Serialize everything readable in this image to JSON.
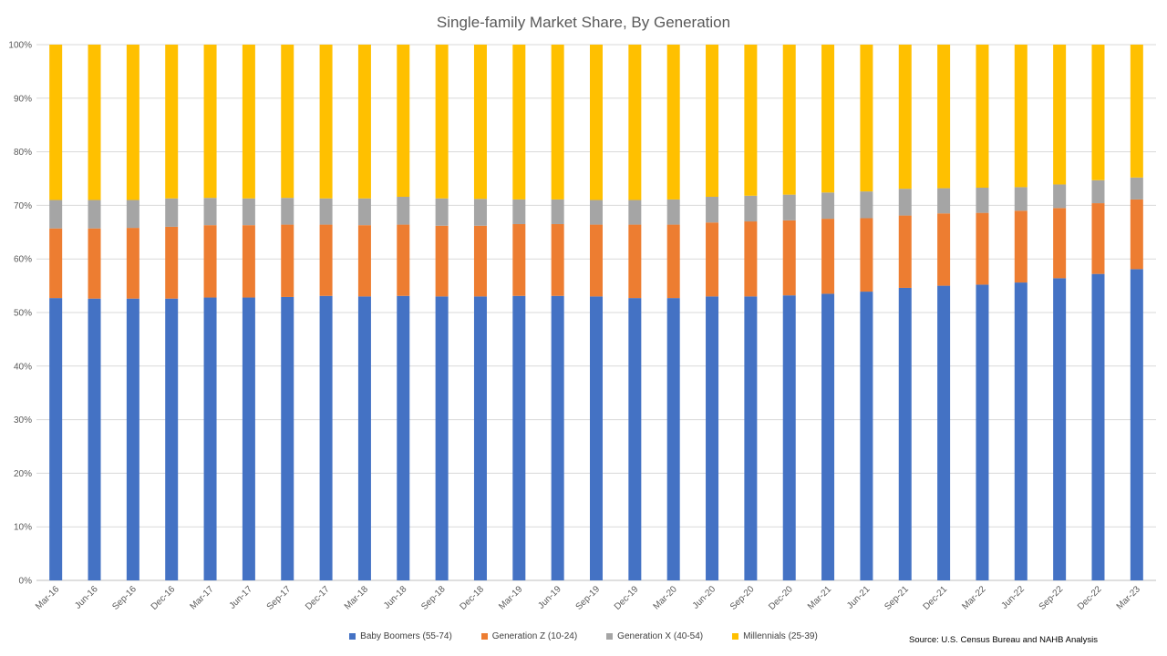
{
  "chart_data": {
    "type": "bar",
    "stacked": true,
    "percent_stacked": true,
    "title": "Single-family Market Share, By Generation",
    "source": "Source: U.S. Census Bureau and NAHB Analysis",
    "xlabel": "",
    "ylabel": "",
    "ylim": [
      0,
      100
    ],
    "yticks": [
      "0%",
      "10%",
      "20%",
      "30%",
      "40%",
      "50%",
      "60%",
      "70%",
      "80%",
      "90%",
      "100%"
    ],
    "grid": true,
    "legend_position": "bottom",
    "categories": [
      "Mar-16",
      "Jun-16",
      "Sep-16",
      "Dec-16",
      "Mar-17",
      "Jun-17",
      "Sep-17",
      "Dec-17",
      "Mar-18",
      "Jun-18",
      "Sep-18",
      "Dec-18",
      "Mar-19",
      "Jun-19",
      "Sep-19",
      "Dec-19",
      "Mar-20",
      "Jun-20",
      "Sep-20",
      "Dec-20",
      "Mar-21",
      "Jun-21",
      "Sep-21",
      "Dec-21",
      "Mar-22",
      "Jun-22",
      "Sep-22",
      "Dec-22",
      "Mar-23"
    ],
    "series": [
      {
        "name": "Baby Boomers (55-74)",
        "color": "#4472C4",
        "values": [
          52.7,
          52.6,
          52.6,
          52.6,
          52.8,
          52.8,
          52.9,
          53.1,
          53.0,
          53.1,
          53.0,
          53.0,
          53.1,
          53.1,
          53.0,
          52.7,
          52.7,
          53.0,
          53.0,
          53.2,
          53.5,
          53.9,
          54.6,
          55.0,
          55.2,
          55.6,
          56.4,
          57.2,
          58.1
        ]
      },
      {
        "name": "Generation Z (10-24)",
        "color": "#ED7D31",
        "values": [
          13.0,
          13.1,
          13.2,
          13.4,
          13.5,
          13.5,
          13.5,
          13.3,
          13.3,
          13.3,
          13.2,
          13.2,
          13.4,
          13.4,
          13.4,
          13.7,
          13.7,
          13.8,
          14.0,
          14.0,
          14.0,
          13.7,
          13.5,
          13.5,
          13.4,
          13.4,
          13.1,
          13.2,
          13.0
        ]
      },
      {
        "name": "Generation X (40-54)",
        "color": "#A5A5A5",
        "values": [
          5.3,
          5.3,
          5.2,
          5.3,
          5.1,
          5.0,
          5.0,
          4.9,
          5.0,
          5.2,
          5.1,
          5.0,
          4.6,
          4.6,
          4.6,
          4.6,
          4.7,
          4.8,
          4.8,
          4.8,
          4.9,
          5.0,
          5.0,
          4.7,
          4.7,
          4.4,
          4.4,
          4.3,
          4.1
        ]
      },
      {
        "name": "Millennials  (25-39)",
        "color": "#FFC000",
        "values": [
          29.0,
          29.0,
          29.0,
          28.7,
          28.6,
          28.7,
          28.6,
          28.7,
          28.7,
          28.4,
          28.7,
          28.8,
          28.9,
          28.9,
          29.0,
          29.0,
          28.9,
          28.4,
          28.2,
          28.0,
          27.6,
          27.4,
          26.9,
          26.8,
          26.7,
          26.6,
          26.1,
          25.3,
          24.8
        ]
      }
    ]
  }
}
